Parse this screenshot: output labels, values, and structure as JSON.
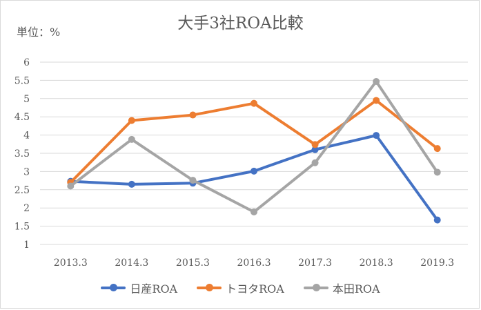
{
  "chart_data": {
    "type": "line",
    "title": "大手3社ROA比較",
    "unit_label": "単位：%",
    "categories": [
      "2013.3",
      "2014.3",
      "2015.3",
      "2016.3",
      "2017.3",
      "2018.3",
      "2019.3"
    ],
    "y_ticks": [
      "1",
      "1.5",
      "2",
      "2.5",
      "3",
      "3.5",
      "4",
      "4.5",
      "5",
      "5.5",
      "6"
    ],
    "ylim": [
      1,
      6
    ],
    "grid": true,
    "legend_position": "bottom",
    "series": [
      {
        "name": "日産ROA",
        "color": "#4472c4",
        "values": [
          2.73,
          2.65,
          2.68,
          3.01,
          3.6,
          3.99,
          1.67
        ]
      },
      {
        "name": "トヨタROA",
        "color": "#ed7d31",
        "values": [
          2.7,
          4.4,
          4.55,
          4.87,
          3.74,
          4.95,
          3.63
        ]
      },
      {
        "name": "本田ROA",
        "color": "#a5a5a5",
        "values": [
          2.6,
          3.88,
          2.76,
          1.89,
          3.24,
          5.47,
          2.98
        ]
      }
    ]
  }
}
